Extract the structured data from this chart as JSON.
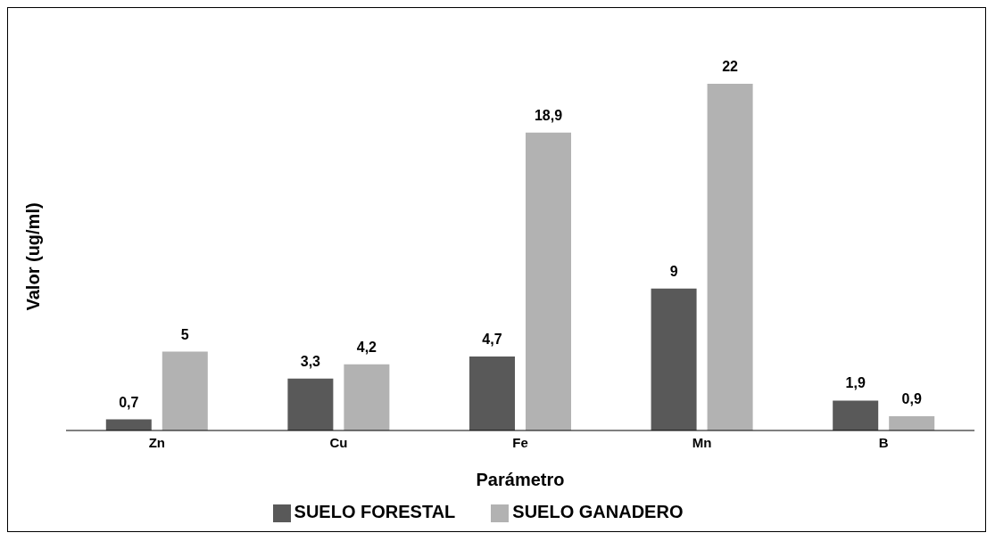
{
  "chart_data": {
    "type": "bar",
    "xlabel": "Parámetro",
    "ylabel": "Valor (ug/ml)",
    "categories": [
      "Zn",
      "Cu",
      "Fe",
      "Mn",
      "B"
    ],
    "series": [
      {
        "name": "SUELO FORESTAL",
        "color": "#595959",
        "values": [
          0.7,
          3.3,
          4.7,
          9,
          1.9
        ],
        "value_labels": [
          "0,7",
          "3,3",
          "4,7",
          "9",
          "1,9"
        ]
      },
      {
        "name": "SUELO GANADERO",
        "color": "#b2b2b2",
        "values": [
          5,
          4.2,
          18.9,
          22,
          0.9
        ],
        "value_labels": [
          "5",
          "4,2",
          "18,9",
          "22",
          "0,9"
        ]
      }
    ],
    "tick_labels": "x",
    "grid": false,
    "legend": "bottom"
  }
}
